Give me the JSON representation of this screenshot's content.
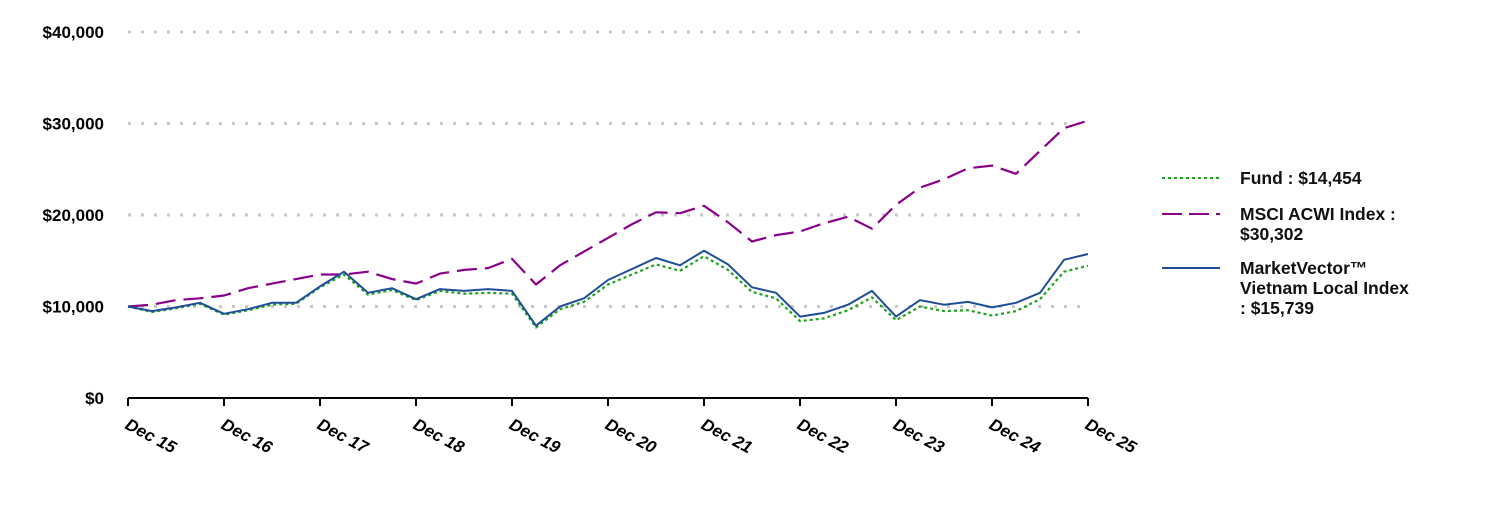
{
  "chart_data": {
    "type": "line",
    "title": "",
    "xlabel": "",
    "ylabel": "",
    "ylim": [
      0,
      40000
    ],
    "yticks": [
      0,
      10000,
      20000,
      30000,
      40000
    ],
    "ytick_labels": [
      "$0",
      "$10,000",
      "$20,000",
      "$30,000",
      "$40,000"
    ],
    "xtick_labels": [
      "Dec 15",
      "Dec 16",
      "Dec 17",
      "Dec 18",
      "Dec 19",
      "Dec 20",
      "Dec 21",
      "Dec 22",
      "Dec 23",
      "Dec 24",
      "Dec 25"
    ],
    "grid": "horizontal dotted",
    "legend_position": "right",
    "x_resolution": "quarterly",
    "series": [
      {
        "name": "Fund",
        "legend_label": "Fund : $14,454",
        "ending_value": 14454,
        "color": "#1BA31B",
        "style": "dotted",
        "values": [
          10000,
          9400,
          9800,
          10300,
          9100,
          9600,
          10200,
          10300,
          12100,
          13500,
          11300,
          11800,
          10700,
          11700,
          11400,
          11500,
          11400,
          7700,
          9700,
          10500,
          12400,
          13500,
          14600,
          13900,
          15500,
          14000,
          11600,
          10900,
          8400,
          8700,
          9600,
          11000,
          8500,
          10000,
          9500,
          9600,
          9000,
          9500,
          10800,
          13800,
          14454
        ]
      },
      {
        "name": "MSCI ACWI Index",
        "legend_label": "MSCI ACWI Index : $30,302",
        "ending_value": 30302,
        "color": "#8B008B",
        "style": "dashed",
        "values": [
          10000,
          10200,
          10700,
          10900,
          11200,
          12000,
          12500,
          13000,
          13500,
          13500,
          13800,
          13000,
          12500,
          13600,
          14000,
          14200,
          15200,
          12400,
          14500,
          16000,
          17500,
          19000,
          20300,
          20200,
          21000,
          19200,
          17100,
          17800,
          18200,
          19100,
          19800,
          18500,
          21100,
          23000,
          23900,
          25100,
          25400,
          24500,
          27000,
          29500,
          30302
        ]
      },
      {
        "name": "MarketVector™ Vietnam Local Index",
        "legend_label": "MarketVector™ Vietnam Local Index : $15,739",
        "ending_value": 15739,
        "color": "#1F4E99",
        "style": "solid",
        "values": [
          10000,
          9500,
          9900,
          10400,
          9200,
          9700,
          10400,
          10400,
          12200,
          13800,
          11500,
          12000,
          10800,
          11900,
          11700,
          11900,
          11700,
          7900,
          10000,
          10900,
          12900,
          14100,
          15300,
          14500,
          16100,
          14600,
          12100,
          11500,
          8900,
          9300,
          10200,
          11700,
          8900,
          10700,
          10200,
          10500,
          9900,
          10400,
          11500,
          15100,
          15739
        ]
      }
    ]
  },
  "legend": {
    "items": [
      {
        "lines": [
          "Fund : $14,454"
        ]
      },
      {
        "lines": [
          "MSCI ACWI Index :",
          "$30,302"
        ]
      },
      {
        "lines": [
          "MarketVector™",
          "Vietnam Local Index",
          ": $15,739"
        ]
      }
    ]
  }
}
